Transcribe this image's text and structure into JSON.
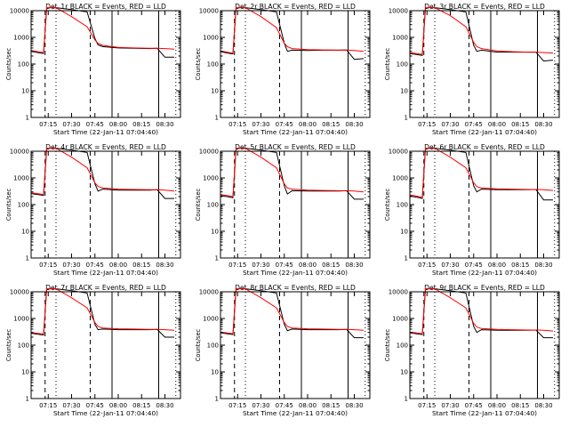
{
  "figure": {
    "background": "#ffffff",
    "events_color": "#000000",
    "lld_color": "#ff0000"
  },
  "chart_data": [
    {
      "type": "line",
      "title": "Det_1r BLACK = Events, RED = LLD",
      "xlabel": "Start Time (22-Jan-11 07:04:40)",
      "ylabel": "Counts/sec",
      "yscale": "log",
      "ylim": [
        1,
        10000
      ],
      "xticks": [
        "07:15",
        "07:30",
        "07:45",
        "08:00",
        "08:15",
        "08:30"
      ],
      "yticks": [
        "1",
        "10",
        "100",
        "1000",
        "10000"
      ],
      "x": [
        "07:04",
        "07:10",
        "07:12",
        "07:14",
        "07:16",
        "07:20",
        "07:30",
        "07:40",
        "07:45",
        "07:47",
        "07:50",
        "08:00",
        "08:10",
        "08:20",
        "08:25",
        "08:30",
        "08:36"
      ],
      "series": [
        {
          "name": "Events",
          "values": [
            300,
            260,
            250,
            12000,
            13000,
            13000,
            11000,
            9000,
            900,
            520,
            450,
            400,
            390,
            380,
            390,
            180,
            180
          ]
        },
        {
          "name": "LLD",
          "values": [
            320,
            280,
            270,
            13000,
            14000,
            14000,
            6000,
            2500,
            800,
            600,
            500,
            420,
            400,
            390,
            390,
            380,
            360
          ]
        }
      ]
    },
    {
      "type": "line",
      "title": "Det_2r BLACK = Events, RED = LLD",
      "xlabel": "Start Time (22-Jan-11 07:04:40)",
      "ylabel": "Counts/sec",
      "yscale": "log",
      "ylim": [
        1,
        10000
      ],
      "xticks": [
        "07:15",
        "07:30",
        "07:45",
        "08:00",
        "08:15",
        "08:30"
      ],
      "yticks": [
        "1",
        "10",
        "100",
        "1000",
        "10000"
      ],
      "x": [
        "07:04",
        "07:10",
        "07:12",
        "07:14",
        "07:16",
        "07:20",
        "07:30",
        "07:40",
        "07:45",
        "07:47",
        "07:50",
        "08:00",
        "08:10",
        "08:20",
        "08:25",
        "08:30",
        "08:36"
      ],
      "series": [
        {
          "name": "Events",
          "values": [
            290,
            250,
            240,
            12000,
            13000,
            13000,
            11000,
            9000,
            600,
            300,
            330,
            320,
            330,
            330,
            340,
            150,
            160
          ]
        },
        {
          "name": "LLD",
          "values": [
            310,
            270,
            260,
            13000,
            14000,
            14000,
            6000,
            2300,
            600,
            450,
            380,
            350,
            340,
            330,
            330,
            320,
            300
          ]
        }
      ]
    },
    {
      "type": "line",
      "title": "Det_3r BLACK = Events, RED = LLD",
      "xlabel": "Start Time (22-Jan-11 07:04:40)",
      "ylabel": "Counts/sec",
      "yscale": "log",
      "ylim": [
        1,
        10000
      ],
      "xticks": [
        "07:15",
        "07:30",
        "07:45",
        "08:00",
        "08:15",
        "08:30"
      ],
      "yticks": [
        "1",
        "10",
        "100",
        "1000",
        "10000"
      ],
      "x": [
        "07:04",
        "07:10",
        "07:12",
        "07:14",
        "07:16",
        "07:20",
        "07:30",
        "07:40",
        "07:45",
        "07:47",
        "07:50",
        "08:00",
        "08:10",
        "08:20",
        "08:25",
        "08:30",
        "08:36"
      ],
      "series": [
        {
          "name": "Events",
          "values": [
            250,
            220,
            210,
            12000,
            13000,
            13000,
            11000,
            9000,
            500,
            300,
            330,
            280,
            280,
            280,
            280,
            130,
            140
          ]
        },
        {
          "name": "LLD",
          "values": [
            270,
            240,
            230,
            13000,
            14000,
            14000,
            6500,
            2500,
            650,
            450,
            380,
            310,
            290,
            280,
            280,
            270,
            260
          ]
        }
      ]
    },
    {
      "type": "line",
      "title": "Det_4r BLACK = Events, RED = LLD",
      "xlabel": "Start Time (22-Jan-11 07:04:40)",
      "ylabel": "Counts/sec",
      "yscale": "log",
      "ylim": [
        1,
        10000
      ],
      "xticks": [
        "07:15",
        "07:30",
        "07:45",
        "08:00",
        "08:15",
        "08:30"
      ],
      "yticks": [
        "1",
        "10",
        "100",
        "1000",
        "10000"
      ],
      "x": [
        "07:04",
        "07:10",
        "07:12",
        "07:14",
        "07:16",
        "07:20",
        "07:30",
        "07:40",
        "07:45",
        "07:47",
        "07:50",
        "08:00",
        "08:10",
        "08:20",
        "08:25",
        "08:30",
        "08:36"
      ],
      "series": [
        {
          "name": "Events",
          "values": [
            260,
            230,
            220,
            12000,
            13000,
            13000,
            11000,
            9000,
            600,
            320,
            380,
            350,
            350,
            350,
            360,
            170,
            170
          ]
        },
        {
          "name": "LLD",
          "values": [
            280,
            250,
            240,
            13000,
            14000,
            14000,
            6000,
            2400,
            650,
            480,
            420,
            380,
            370,
            360,
            360,
            350,
            320
          ]
        }
      ]
    },
    {
      "type": "line",
      "title": "Det_5r BLACK = Events, RED = LLD",
      "xlabel": "Start Time (22-Jan-11 07:04:40)",
      "ylabel": "Counts/sec",
      "yscale": "log",
      "ylim": [
        1,
        10000
      ],
      "xticks": [
        "07:15",
        "07:30",
        "07:45",
        "08:00",
        "08:15",
        "08:30"
      ],
      "yticks": [
        "1",
        "10",
        "100",
        "1000",
        "10000"
      ],
      "x": [
        "07:04",
        "07:10",
        "07:12",
        "07:14",
        "07:16",
        "07:20",
        "07:30",
        "07:40",
        "07:45",
        "07:47",
        "07:50",
        "08:00",
        "08:10",
        "08:20",
        "08:25",
        "08:30",
        "08:36"
      ],
      "series": [
        {
          "name": "Events",
          "values": [
            220,
            190,
            180,
            12000,
            13000,
            13000,
            11000,
            9000,
            500,
            250,
            330,
            320,
            320,
            320,
            330,
            160,
            160
          ]
        },
        {
          "name": "LLD",
          "values": [
            240,
            210,
            200,
            13000,
            14000,
            14000,
            6000,
            2400,
            600,
            420,
            380,
            350,
            340,
            330,
            330,
            320,
            300
          ]
        }
      ]
    },
    {
      "type": "line",
      "title": "Det_6r BLACK = Events, RED = LLD",
      "xlabel": "Start Time (22-Jan-11 07:04:40)",
      "ylabel": "Counts/sec",
      "yscale": "log",
      "ylim": [
        1,
        10000
      ],
      "xticks": [
        "07:15",
        "07:30",
        "07:45",
        "08:00",
        "08:15",
        "08:30"
      ],
      "yticks": [
        "1",
        "10",
        "100",
        "1000",
        "10000"
      ],
      "x": [
        "07:04",
        "07:10",
        "07:12",
        "07:14",
        "07:16",
        "07:20",
        "07:30",
        "07:40",
        "07:45",
        "07:47",
        "07:50",
        "08:00",
        "08:10",
        "08:20",
        "08:25",
        "08:30",
        "08:36"
      ],
      "series": [
        {
          "name": "Events",
          "values": [
            210,
            180,
            170,
            12000,
            13000,
            13000,
            11000,
            9000,
            500,
            300,
            380,
            360,
            360,
            360,
            370,
            150,
            150
          ]
        },
        {
          "name": "LLD",
          "values": [
            230,
            200,
            190,
            13000,
            14000,
            14000,
            6000,
            2400,
            650,
            470,
            420,
            390,
            380,
            370,
            370,
            360,
            340
          ]
        }
      ]
    },
    {
      "type": "line",
      "title": "Det_7r BLACK = Events, RED = LLD",
      "xlabel": "Start Time (22-Jan-11 07:04:40)",
      "ylabel": "Counts/sec",
      "yscale": "log",
      "ylim": [
        1,
        10000
      ],
      "xticks": [
        "07:15",
        "07:30",
        "07:45",
        "08:00",
        "08:15",
        "08:30"
      ],
      "yticks": [
        "1",
        "10",
        "100",
        "1000",
        "10000"
      ],
      "x": [
        "07:04",
        "07:10",
        "07:12",
        "07:14",
        "07:16",
        "07:20",
        "07:30",
        "07:40",
        "07:45",
        "07:47",
        "07:50",
        "08:00",
        "08:10",
        "08:20",
        "08:25",
        "08:30",
        "08:36"
      ],
      "series": [
        {
          "name": "Events",
          "values": [
            280,
            250,
            240,
            12000,
            13000,
            13000,
            11000,
            9000,
            600,
            380,
            400,
            380,
            380,
            380,
            390,
            200,
            200
          ]
        },
        {
          "name": "LLD",
          "values": [
            300,
            270,
            260,
            13000,
            14000,
            14000,
            6000,
            2500,
            700,
            500,
            440,
            410,
            400,
            390,
            390,
            380,
            360
          ]
        }
      ]
    },
    {
      "type": "line",
      "title": "Det_8r BLACK = Events, RED = LLD",
      "xlabel": "Start Time (22-Jan-11 07:04:40)",
      "ylabel": "Counts/sec",
      "yscale": "log",
      "ylim": [
        1,
        10000
      ],
      "xticks": [
        "07:15",
        "07:30",
        "07:45",
        "08:00",
        "08:15",
        "08:30"
      ],
      "yticks": [
        "1",
        "10",
        "100",
        "1000",
        "10000"
      ],
      "x": [
        "07:04",
        "07:10",
        "07:12",
        "07:14",
        "07:16",
        "07:20",
        "07:30",
        "07:40",
        "07:45",
        "07:47",
        "07:50",
        "08:00",
        "08:10",
        "08:20",
        "08:25",
        "08:30",
        "08:36"
      ],
      "series": [
        {
          "name": "Events",
          "values": [
            290,
            260,
            250,
            12000,
            13000,
            13000,
            11000,
            9000,
            600,
            350,
            400,
            380,
            380,
            380,
            390,
            190,
            190
          ]
        },
        {
          "name": "LLD",
          "values": [
            310,
            280,
            270,
            13000,
            14000,
            14000,
            6000,
            2500,
            700,
            500,
            440,
            410,
            400,
            390,
            390,
            380,
            360
          ]
        }
      ]
    },
    {
      "type": "line",
      "title": "Det_9r BLACK = Events, RED = LLD",
      "xlabel": "Start Time (22-Jan-11 07:04:40)",
      "ylabel": "Counts/sec",
      "yscale": "log",
      "ylim": [
        1,
        10000
      ],
      "xticks": [
        "07:15",
        "07:30",
        "07:45",
        "08:00",
        "08:15",
        "08:30"
      ],
      "yticks": [
        "1",
        "10",
        "100",
        "1000",
        "10000"
      ],
      "x": [
        "07:04",
        "07:10",
        "07:12",
        "07:14",
        "07:16",
        "07:20",
        "07:30",
        "07:40",
        "07:45",
        "07:47",
        "07:50",
        "08:00",
        "08:10",
        "08:20",
        "08:25",
        "08:30",
        "08:36"
      ],
      "series": [
        {
          "name": "Events",
          "values": [
            290,
            260,
            250,
            12000,
            13000,
            13000,
            11000,
            9000,
            500,
            300,
            380,
            360,
            360,
            360,
            370,
            190,
            190
          ]
        },
        {
          "name": "LLD",
          "values": [
            310,
            280,
            270,
            13000,
            14000,
            14000,
            6000,
            2500,
            650,
            480,
            420,
            390,
            380,
            370,
            370,
            360,
            340
          ]
        }
      ]
    }
  ]
}
